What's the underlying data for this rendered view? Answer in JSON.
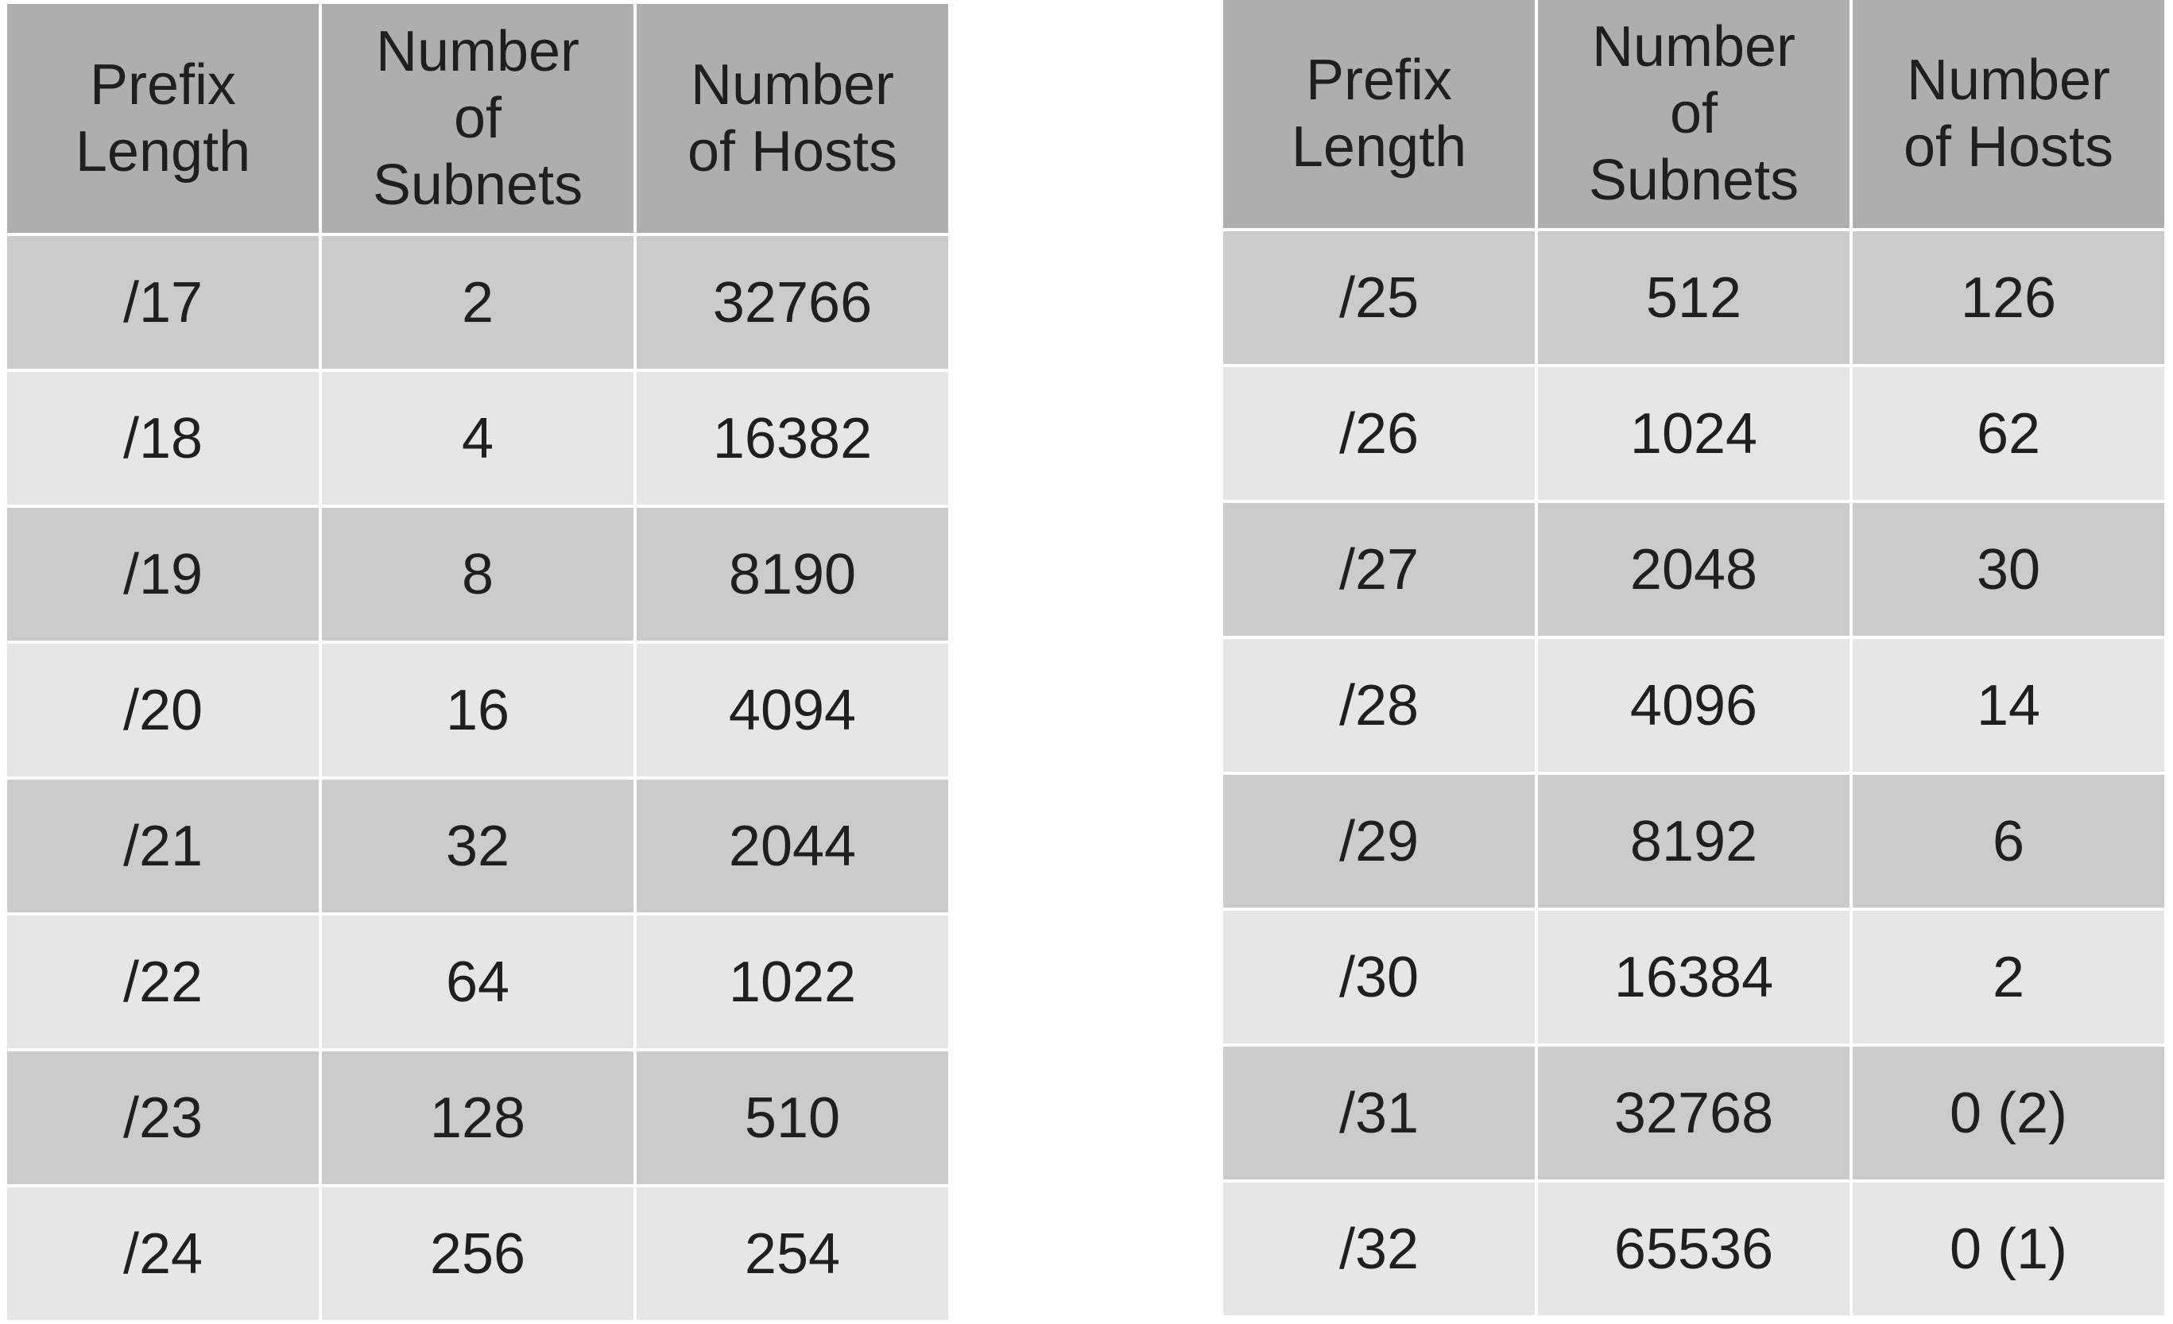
{
  "tables": [
    {
      "headers": [
        "Prefix\nLength",
        "Number\nof\nSubnets",
        "Number\nof Hosts"
      ],
      "rows": [
        [
          "/17",
          "2",
          "32766"
        ],
        [
          "/18",
          "4",
          "16382"
        ],
        [
          "/19",
          "8",
          "8190"
        ],
        [
          "/20",
          "16",
          "4094"
        ],
        [
          "/21",
          "32",
          "2044"
        ],
        [
          "/22",
          "64",
          "1022"
        ],
        [
          "/23",
          "128",
          "510"
        ],
        [
          "/24",
          "256",
          "254"
        ]
      ]
    },
    {
      "headers": [
        "Prefix\nLength",
        "Number\nof\nSubnets",
        "Number\nof Hosts"
      ],
      "rows": [
        [
          "/25",
          "512",
          "126"
        ],
        [
          "/26",
          "1024",
          "62"
        ],
        [
          "/27",
          "2048",
          "30"
        ],
        [
          "/28",
          "4096",
          "14"
        ],
        [
          "/29",
          "8192",
          "6"
        ],
        [
          "/30",
          "16384",
          "2"
        ],
        [
          "/31",
          "32768",
          "0 (2)"
        ],
        [
          "/32",
          "65536",
          "0 (1)"
        ]
      ]
    }
  ],
  "colors": {
    "header_bg": "#aeaeae",
    "row_dark_bg": "#cbcbcb",
    "row_light_bg": "#e6e6e6",
    "text": "#1f1f1f"
  }
}
